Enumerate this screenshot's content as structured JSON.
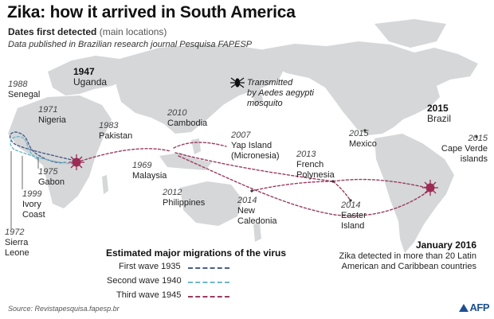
{
  "title": "Zika: how it arrived in South America",
  "subtitle": {
    "lead": "Dates first detected",
    "note": "(main locations)"
  },
  "credit": "Data published in Brazilian research journal Pesquisa FAPESP",
  "mosquito_note": [
    "Transmitted",
    "by Aedes aegypti",
    "mosquito"
  ],
  "locations": [
    {
      "id": "senegal",
      "year": "1988",
      "name": [
        "Senegal"
      ]
    },
    {
      "id": "nigeria",
      "year": "1971",
      "name": [
        "Nigeria"
      ]
    },
    {
      "id": "uganda",
      "year": "1947",
      "name": [
        "Uganda"
      ]
    },
    {
      "id": "pakistan",
      "year": "1983",
      "name": [
        "Pakistan"
      ]
    },
    {
      "id": "cambodia",
      "year": "2010",
      "name": [
        "Cambodia"
      ]
    },
    {
      "id": "yap",
      "year": "2007",
      "name": [
        "Yap Island",
        "(Micronesia)"
      ]
    },
    {
      "id": "malaysia",
      "year": "1969",
      "name": [
        "Malaysia"
      ]
    },
    {
      "id": "philippines",
      "year": "2012",
      "name": [
        "Philippines"
      ]
    },
    {
      "id": "gabon",
      "year": "1975",
      "name": [
        "Gabon"
      ]
    },
    {
      "id": "ivory",
      "year": "1999",
      "name": [
        "Ivory",
        "Coast"
      ]
    },
    {
      "id": "sierra",
      "year": "1972",
      "name": [
        "Sierra",
        "Leone"
      ]
    },
    {
      "id": "newcal",
      "year": "2014",
      "name": [
        "New",
        "Caledonia"
      ]
    },
    {
      "id": "polynesia",
      "year": "2013",
      "name": [
        "French",
        "Polynesia"
      ]
    },
    {
      "id": "easter",
      "year": "2014",
      "name": [
        "Easter",
        "Island"
      ]
    },
    {
      "id": "mexico",
      "year": "2015",
      "name": [
        "Mexico"
      ]
    },
    {
      "id": "brazil",
      "year": "2015",
      "name": [
        "Brazil"
      ]
    },
    {
      "id": "capeverde",
      "year": "2015",
      "name": [
        "Cape Verde",
        "islands"
      ]
    }
  ],
  "legend": {
    "title": "Estimated major migrations of the virus",
    "items": [
      {
        "label": "First wave 1935",
        "color": "#4a5d8a"
      },
      {
        "label": "Second wave 1940",
        "color": "#6fb6c8"
      },
      {
        "label": "Third wave 1945",
        "color": "#9b3b62"
      }
    ]
  },
  "callout": {
    "title": "January 2016",
    "body": "Zika detected in more than 20 Latin American and Caribbean countries"
  },
  "colors": {
    "land": "#d5d7d9",
    "outbreak": "#9b2c55"
  },
  "source": "Source: Revistapesquisa.fapesp.br",
  "logo": "AFP"
}
